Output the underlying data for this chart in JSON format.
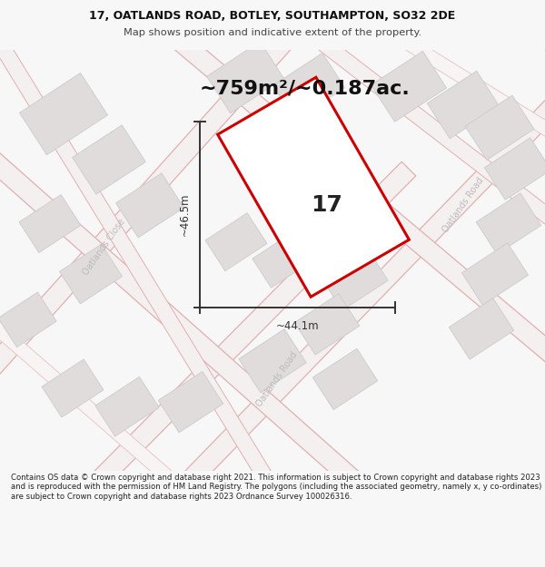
{
  "title_line1": "17, OATLANDS ROAD, BOTLEY, SOUTHAMPTON, SO32 2DE",
  "title_line2": "Map shows position and indicative extent of the property.",
  "area_text": "~759m²/~0.187ac.",
  "plot_number": "17",
  "dim_width": "~44.1m",
  "dim_height": "~46.5m",
  "footer_text": "Contains OS data © Crown copyright and database right 2021. This information is subject to Crown copyright and database rights 2023 and is reproduced with the permission of HM Land Registry. The polygons (including the associated geometry, namely x, y co-ordinates) are subject to Crown copyright and database rights 2023 Ordnance Survey 100026316.",
  "bg_color": "#f8f7f7",
  "map_bg": "#f9f8f8",
  "plot_fill": "#ffffff",
  "plot_border": "#cc0000",
  "road_outline_color": "#e8b8b8",
  "road_fill_color": "#f5eeee",
  "building_fill": "#e0dcdc",
  "building_edge": "#cccccc",
  "dim_color": "#333333",
  "road_label_color": "#bbbbbb",
  "fig_width": 6.0,
  "fig_height": 6.25,
  "title_fontsize": 9.0,
  "subtitle_fontsize": 8.2,
  "area_fontsize": 16,
  "plot_num_fontsize": 18,
  "dim_fontsize": 8.5,
  "road_label_fontsize": 7.0,
  "footer_fontsize": 6.1
}
